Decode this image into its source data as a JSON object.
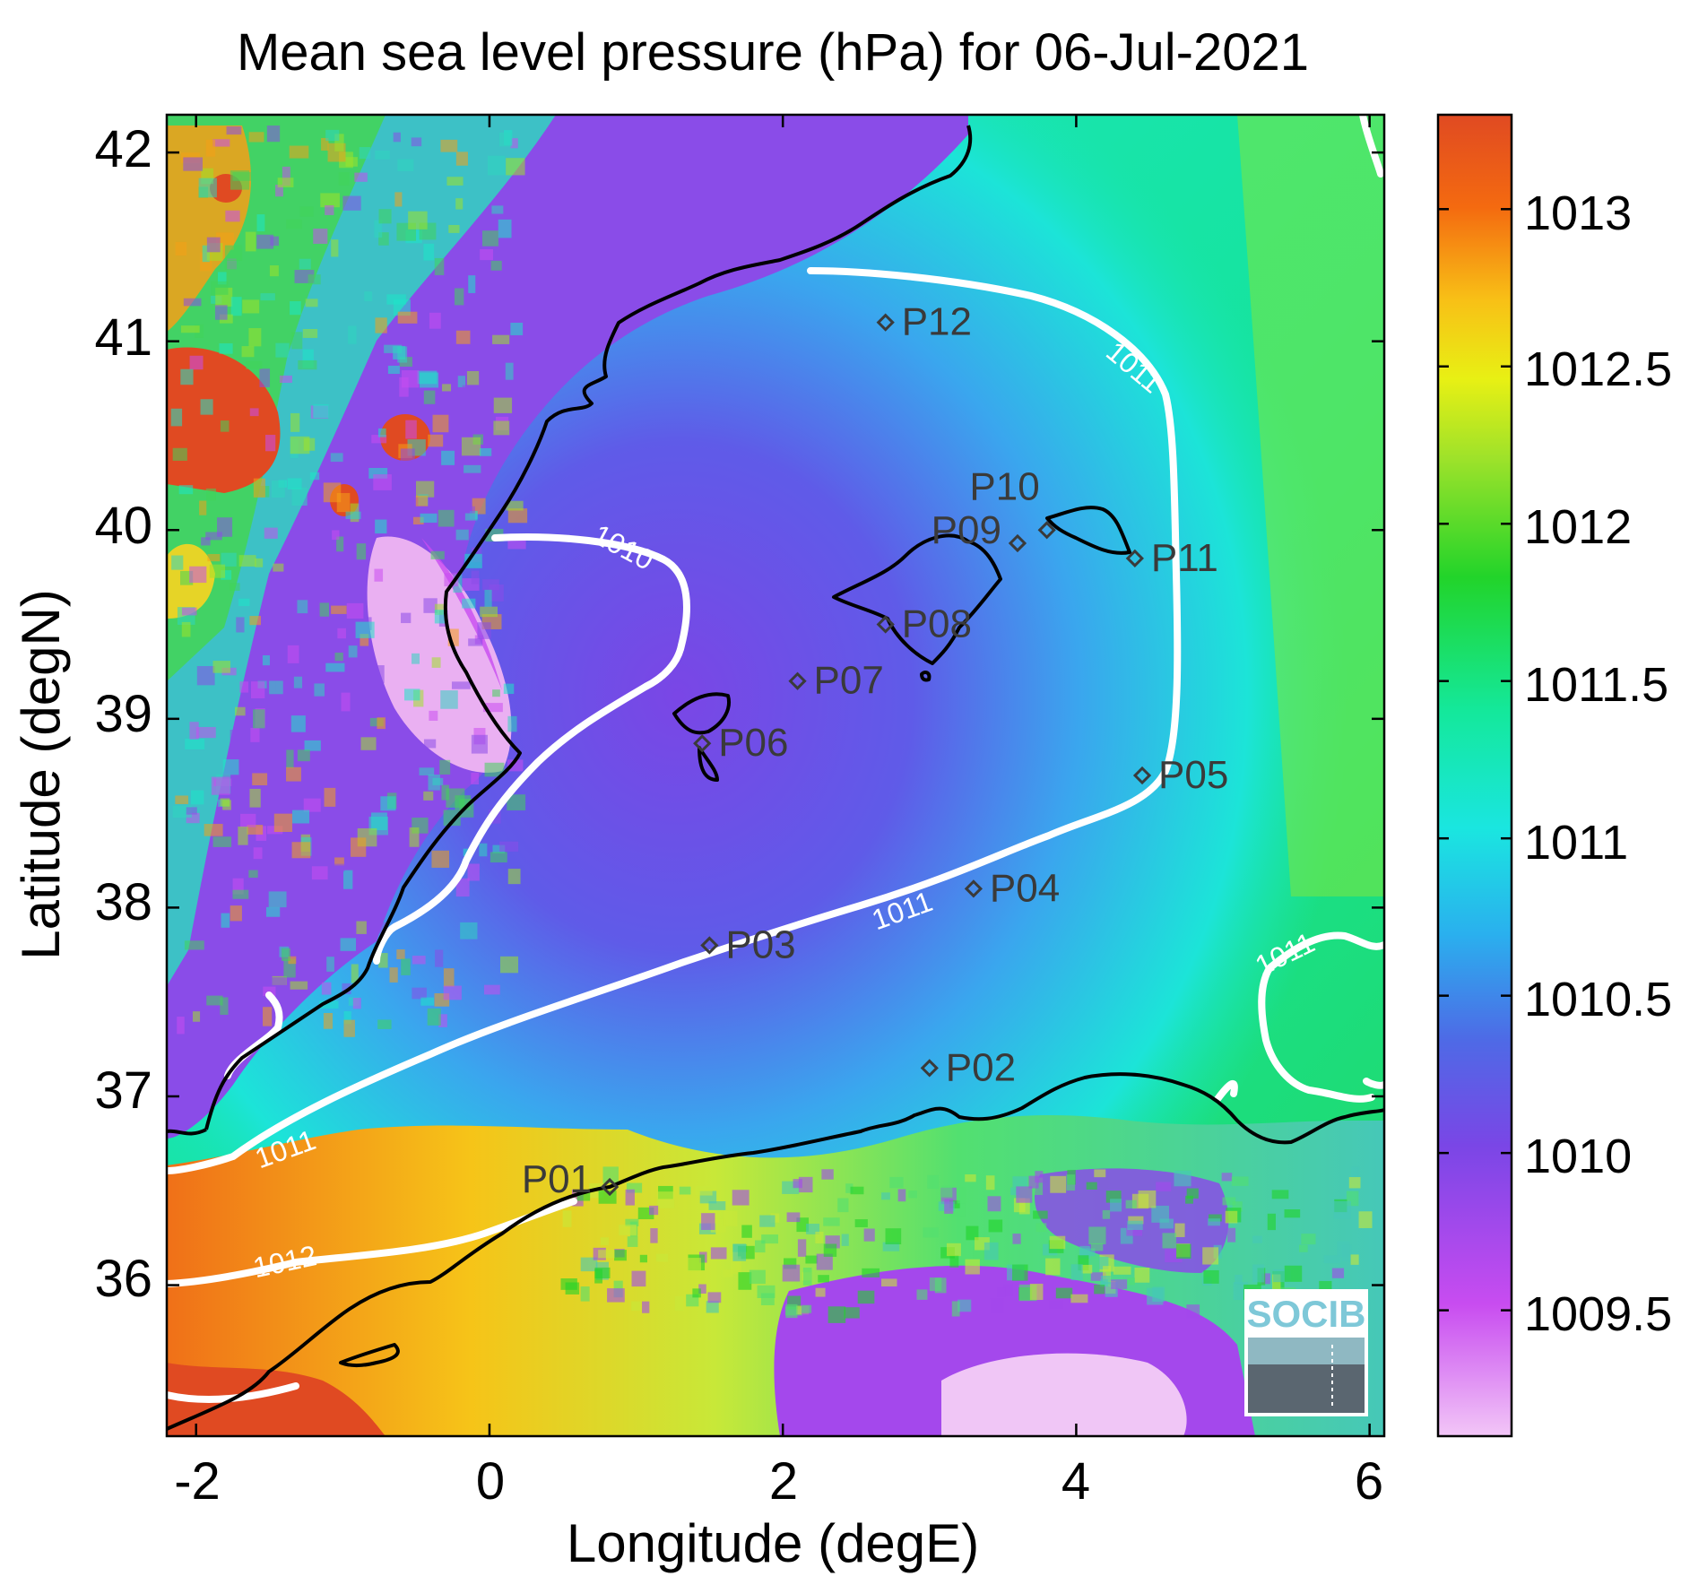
{
  "title": "Mean sea level pressure (hPa) for 06-Jul-2021",
  "x_axis": {
    "label": "Longitude (degE)",
    "ticks": [
      "-2",
      "0",
      "2",
      "4",
      "6"
    ]
  },
  "y_axis": {
    "label": "Latitude (degN)",
    "ticks": [
      "36",
      "37",
      "38",
      "39",
      "40",
      "41",
      "42"
    ]
  },
  "colorbar": {
    "ticks": [
      "1009.5",
      "1010",
      "1010.5",
      "1011",
      "1011.5",
      "1012",
      "1012.5",
      "1013"
    ]
  },
  "contour_labels": [
    "1010",
    "1011",
    "1011",
    "1011",
    "1011",
    "1012"
  ],
  "stations": [
    "P01",
    "P02",
    "P03",
    "P04",
    "P05",
    "P06",
    "P07",
    "P08",
    "P09",
    "P10",
    "P11",
    "P12"
  ],
  "logo_text": "SOCIB",
  "colors": {
    "coast": "#000000",
    "contour": "#ffffff",
    "marker": "#3a3a3a"
  },
  "chart_data": {
    "type": "heatmap",
    "variable": "Mean sea level pressure (hPa)",
    "date": "06-Jul-2021",
    "xlim": [
      -2.2,
      6.1
    ],
    "ylim": [
      35.2,
      42.2
    ],
    "clim": [
      1009.1,
      1013.3
    ],
    "stations": [
      {
        "name": "P01",
        "lon": 0.82,
        "lat": 36.52
      },
      {
        "name": "P02",
        "lon": 3.0,
        "lat": 37.15
      },
      {
        "name": "P03",
        "lon": 1.5,
        "lat": 37.8
      },
      {
        "name": "P04",
        "lon": 3.3,
        "lat": 38.1
      },
      {
        "name": "P05",
        "lon": 4.45,
        "lat": 38.7
      },
      {
        "name": "P06",
        "lon": 1.45,
        "lat": 38.87
      },
      {
        "name": "P07",
        "lon": 2.1,
        "lat": 39.2
      },
      {
        "name": "P08",
        "lon": 2.7,
        "lat": 39.5
      },
      {
        "name": "P09",
        "lon": 3.6,
        "lat": 39.93
      },
      {
        "name": "P10",
        "lon": 3.8,
        "lat": 40.0
      },
      {
        "name": "P11",
        "lon": 4.4,
        "lat": 39.85
      },
      {
        "name": "P12",
        "lon": 2.7,
        "lat": 41.1
      }
    ],
    "contour_levels": [
      1010,
      1011,
      1012
    ]
  }
}
